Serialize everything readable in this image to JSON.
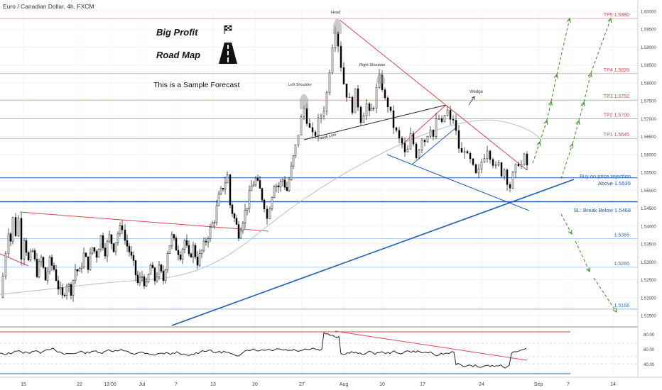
{
  "header": {
    "symbol_title": "Euro / Canadian Dollar, 4h, FXCM"
  },
  "annotations": {
    "big_profit": "Big Profit",
    "road_map": "Road Map",
    "sample_forecast": "This is a Sample Forecast",
    "head": "Head",
    "left_shoulder": "Left Shoulder",
    "right_shoulder": "Right Shoulder",
    "neck_line": "Neck Line",
    "wedge": "Wedge",
    "buy_note_1": "Buy on price rejection",
    "buy_note_2": "Above 1.5535",
    "sl_note": "SL: Break Below 1.5468"
  },
  "levels": [
    {
      "label": "TP5 1.5980",
      "value": 1.598,
      "color": "#e0474c"
    },
    {
      "label": "TP4 1.5826",
      "value": 1.5826,
      "color": "#e0474c"
    },
    {
      "label": "TP3 1.5752",
      "value": 1.5752,
      "color": "#e0474c"
    },
    {
      "label": "TP2 1.5700",
      "value": 1.57,
      "color": "#e0474c"
    },
    {
      "label": "TP1 1.5645",
      "value": 1.5645,
      "color": "#e0474c"
    },
    {
      "label": "",
      "value": 1.5535,
      "color": "#1e5fb4"
    },
    {
      "label": "",
      "value": 1.5468,
      "color": "#1e5fb4"
    },
    {
      "label": "1.5365",
      "value": 1.5365,
      "color": "#2f7ad6"
    },
    {
      "label": "1.5285",
      "value": 1.5285,
      "color": "#2f7ad6"
    },
    {
      "label": "1.5168",
      "value": 1.5168,
      "color": "#2f7ad6"
    }
  ],
  "price_axis_ticks": [
    "1.60000",
    "1.59500",
    "1.59000",
    "1.58500",
    "1.58000",
    "1.57500",
    "1.57000",
    "1.56500",
    "1.56000",
    "1.55500",
    "1.55000",
    "1.54500",
    "1.54000",
    "1.53500",
    "1.53000",
    "1.52500",
    "1.52000",
    "1.51500"
  ],
  "rsi_axis_ticks": [
    "80.00",
    "60.00",
    "40.00"
  ],
  "time_axis_ticks": [
    "15",
    "22",
    "13:00",
    "Jul",
    "7",
    "13",
    "20",
    "27",
    "Aug",
    "10",
    "17",
    "24",
    "Sep",
    "7",
    "14"
  ],
  "colors": {
    "up": "#ffffff",
    "down": "#000000",
    "target_arrow": "#3a8a1e",
    "resistance": "#e0474c",
    "support": "#1e5fb4"
  },
  "chart_data": {
    "type": "candlestick",
    "title": "Euro / Canadian Dollar, 4h, FXCM",
    "x_ticks": [
      "15",
      "22",
      "13:00",
      "Jul",
      "7",
      "13",
      "20",
      "27",
      "Aug",
      "10",
      "17",
      "24",
      "Sep",
      "7",
      "14"
    ],
    "ylim": [
      1.5125,
      1.602
    ],
    "close_path": [
      [
        0,
        1.52
      ],
      [
        4,
        1.526
      ],
      [
        8,
        1.533
      ],
      [
        12,
        1.539
      ],
      [
        15,
        1.536
      ],
      [
        18,
        1.542
      ],
      [
        22,
        1.538
      ],
      [
        26,
        1.542
      ],
      [
        30,
        1.532
      ],
      [
        34,
        1.537
      ],
      [
        40,
        1.53
      ],
      [
        46,
        1.533
      ],
      [
        52,
        1.527
      ],
      [
        58,
        1.531
      ],
      [
        64,
        1.525
      ],
      [
        70,
        1.53
      ],
      [
        76,
        1.528
      ],
      [
        82,
        1.523
      ],
      [
        88,
        1.52
      ],
      [
        94,
        1.524
      ],
      [
        100,
        1.522
      ],
      [
        106,
        1.528
      ],
      [
        112,
        1.527
      ],
      [
        118,
        1.532
      ],
      [
        124,
        1.529
      ],
      [
        130,
        1.534
      ],
      [
        136,
        1.532
      ],
      [
        142,
        1.537
      ],
      [
        148,
        1.533
      ],
      [
        154,
        1.537
      ],
      [
        160,
        1.534
      ],
      [
        166,
        1.538
      ],
      [
        172,
        1.54
      ],
      [
        176,
        1.536
      ],
      [
        182,
        1.533
      ],
      [
        188,
        1.529
      ],
      [
        194,
        1.524
      ],
      [
        200,
        1.526
      ],
      [
        206,
        1.523
      ],
      [
        212,
        1.529
      ],
      [
        218,
        1.525
      ],
      [
        224,
        1.528
      ],
      [
        230,
        1.525
      ],
      [
        236,
        1.533
      ],
      [
        242,
        1.537
      ],
      [
        248,
        1.534
      ],
      [
        254,
        1.532
      ],
      [
        260,
        1.536
      ],
      [
        266,
        1.531
      ],
      [
        272,
        1.534
      ],
      [
        278,
        1.53
      ],
      [
        284,
        1.533
      ],
      [
        290,
        1.536
      ],
      [
        296,
        1.539
      ],
      [
        302,
        1.542
      ],
      [
        308,
        1.548
      ],
      [
        314,
        1.551
      ],
      [
        320,
        1.554
      ],
      [
        324,
        1.546
      ],
      [
        330,
        1.542
      ],
      [
        336,
        1.538
      ],
      [
        342,
        1.542
      ],
      [
        348,
        1.546
      ],
      [
        354,
        1.551
      ],
      [
        360,
        1.553
      ],
      [
        366,
        1.55
      ],
      [
        372,
        1.546
      ],
      [
        376,
        1.542
      ],
      [
        380,
        1.546
      ],
      [
        386,
        1.552
      ],
      [
        392,
        1.551
      ],
      [
        398,
        1.553
      ],
      [
        404,
        1.55
      ],
      [
        410,
        1.556
      ],
      [
        416,
        1.562
      ],
      [
        420,
        1.566
      ],
      [
        424,
        1.57
      ],
      [
        428,
        1.573
      ],
      [
        432,
        1.57
      ],
      [
        436,
        1.567
      ],
      [
        440,
        1.565
      ],
      [
        444,
        1.566
      ],
      [
        448,
        1.569
      ],
      [
        452,
        1.571
      ],
      [
        456,
        1.573
      ],
      [
        460,
        1.577
      ],
      [
        464,
        1.584
      ],
      [
        468,
        1.591
      ],
      [
        472,
        1.5955
      ],
      [
        476,
        1.591
      ],
      [
        480,
        1.585
      ],
      [
        484,
        1.58
      ],
      [
        488,
        1.577
      ],
      [
        492,
        1.575
      ],
      [
        496,
        1.573
      ],
      [
        500,
        1.577
      ],
      [
        504,
        1.574
      ],
      [
        508,
        1.57
      ],
      [
        512,
        1.572
      ],
      [
        516,
        1.574
      ],
      [
        520,
        1.571
      ],
      [
        526,
        1.574
      ],
      [
        530,
        1.578
      ],
      [
        534,
        1.581
      ],
      [
        538,
        1.579
      ],
      [
        542,
        1.575
      ],
      [
        546,
        1.574
      ],
      [
        550,
        1.571
      ],
      [
        554,
        1.568
      ],
      [
        558,
        1.566
      ],
      [
        562,
        1.564
      ],
      [
        566,
        1.563
      ],
      [
        570,
        1.56
      ],
      [
        574,
        1.561
      ],
      [
        578,
        1.565
      ],
      [
        582,
        1.563
      ],
      [
        586,
        1.56
      ],
      [
        590,
        1.562
      ],
      [
        594,
        1.565
      ],
      [
        598,
        1.564
      ],
      [
        602,
        1.566
      ],
      [
        606,
        1.568
      ],
      [
        610,
        1.565
      ],
      [
        614,
        1.569
      ],
      [
        618,
        1.57
      ],
      [
        622,
        1.568
      ],
      [
        626,
        1.571
      ],
      [
        630,
        1.572
      ],
      [
        634,
        1.569
      ],
      [
        638,
        1.57
      ],
      [
        642,
        1.566
      ],
      [
        646,
        1.562
      ],
      [
        650,
        1.56
      ],
      [
        654,
        1.562
      ],
      [
        658,
        1.559
      ],
      [
        662,
        1.558
      ],
      [
        666,
        1.556
      ],
      [
        670,
        1.554
      ],
      [
        674,
        1.555
      ],
      [
        678,
        1.558
      ],
      [
        682,
        1.56
      ],
      [
        686,
        1.562
      ],
      [
        690,
        1.56
      ],
      [
        694,
        1.558
      ],
      [
        698,
        1.556
      ],
      [
        702,
        1.557
      ],
      [
        706,
        1.555
      ],
      [
        710,
        1.556
      ],
      [
        714,
        1.553
      ],
      [
        718,
        1.551
      ],
      [
        722,
        1.554
      ],
      [
        726,
        1.556
      ],
      [
        730,
        1.558
      ],
      [
        734,
        1.557
      ],
      [
        738,
        1.559
      ],
      [
        742,
        1.557
      ]
    ]
  }
}
